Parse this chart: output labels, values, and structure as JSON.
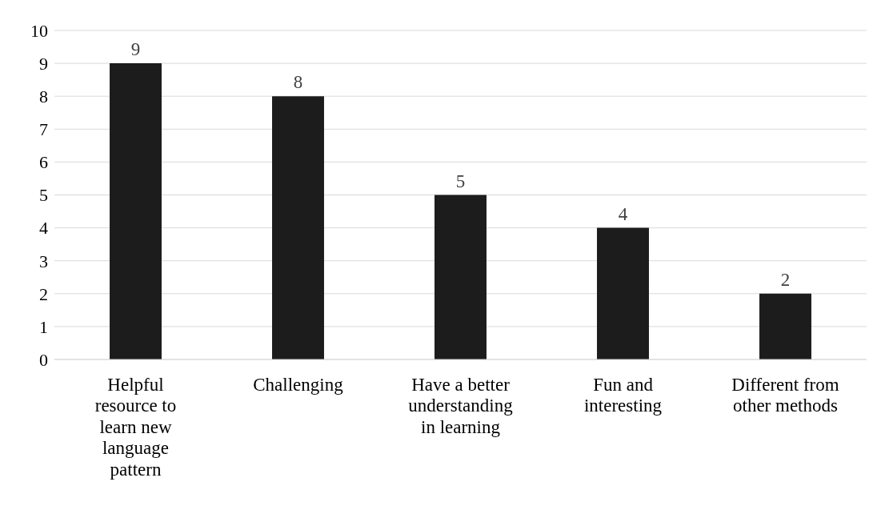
{
  "chart_data": {
    "type": "bar",
    "categories": [
      "Helpful resource to learn new language pattern",
      "Challenging",
      "Have a better understanding in learning",
      "Fun and interesting",
      "Different from other methods"
    ],
    "values": [
      9,
      8,
      5,
      4,
      2
    ],
    "color": "#1c1c1c",
    "ylim": [
      0,
      10
    ],
    "yticks": [
      0,
      1,
      2,
      3,
      4,
      5,
      6,
      7,
      8,
      9,
      10
    ],
    "grid": "y",
    "data_labels": true
  }
}
